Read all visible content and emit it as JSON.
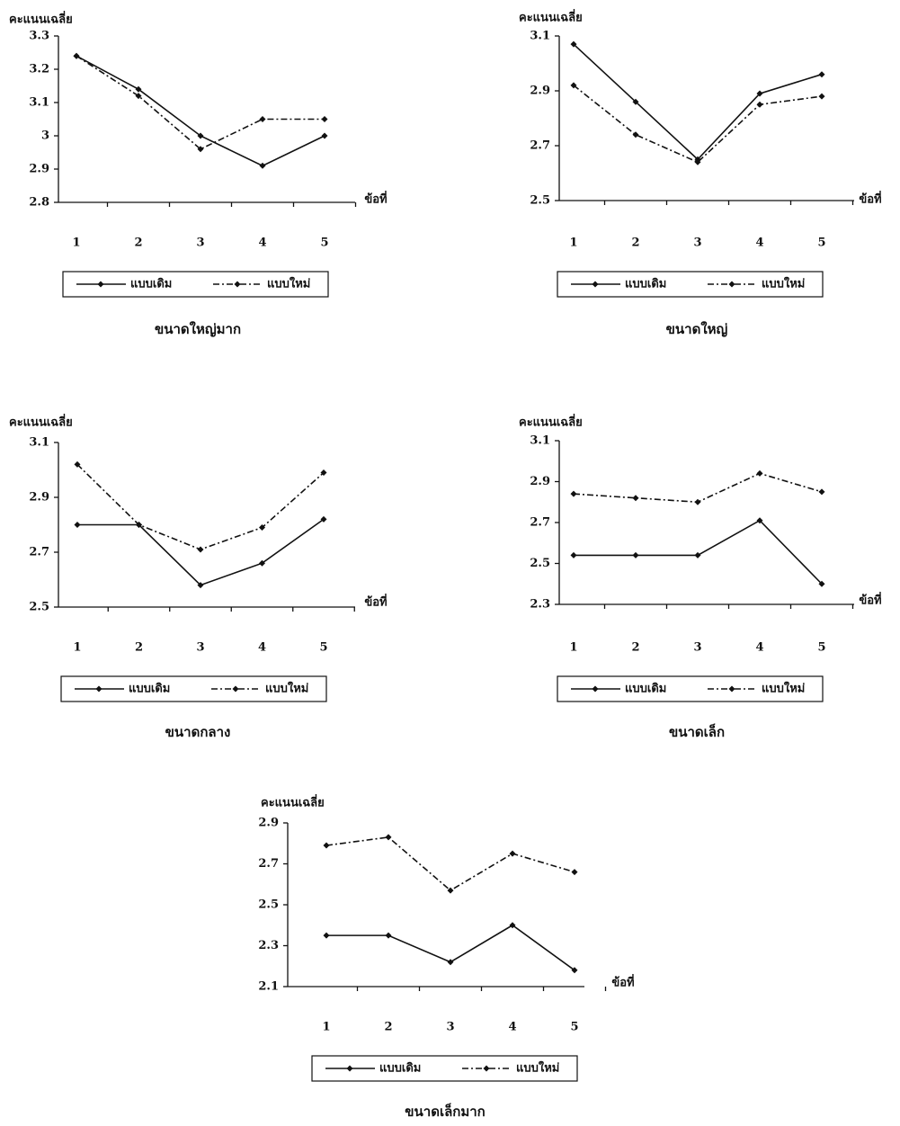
{
  "chart_data": [
    {
      "type": "line",
      "title": "ขนาดใหญ่มาก",
      "y_label": "คะแนนเฉลี่ย",
      "x_label": "ข้อที่",
      "categories": [
        "1",
        "2",
        "3",
        "4",
        "5"
      ],
      "ylim": [
        2.8,
        3.3
      ],
      "yticks": [
        2.8,
        2.9,
        3,
        3.1,
        3.2,
        3.3
      ],
      "series": [
        {
          "name": "แบบเดิม",
          "color": "#111111",
          "line_style": "solid",
          "values": [
            3.24,
            3.14,
            3.0,
            2.91,
            3.0
          ]
        },
        {
          "name": "แบบใหม่",
          "color": "#111111",
          "line_style": "dashdot",
          "values": [
            3.24,
            3.12,
            2.96,
            3.05,
            3.05
          ]
        }
      ]
    },
    {
      "type": "line",
      "title": "ขนาดใหญ่",
      "y_label": "คะแนนเฉลี่ย",
      "x_label": "ข้อที่",
      "categories": [
        "1",
        "2",
        "3",
        "4",
        "5"
      ],
      "ylim": [
        2.5,
        3.1
      ],
      "yticks": [
        2.5,
        2.7,
        2.9,
        3.1
      ],
      "series": [
        {
          "name": "แบบเดิม",
          "color": "#111111",
          "line_style": "solid",
          "values": [
            3.07,
            2.86,
            2.65,
            2.89,
            2.96
          ]
        },
        {
          "name": "แบบใหม่",
          "color": "#111111",
          "line_style": "dashdot",
          "values": [
            2.92,
            2.74,
            2.64,
            2.85,
            2.88
          ]
        }
      ]
    },
    {
      "type": "line",
      "title": "ขนาดกลาง",
      "y_label": "คะแนนเฉลี่ย",
      "x_label": "ข้อที่",
      "categories": [
        "1",
        "2",
        "3",
        "4",
        "5"
      ],
      "ylim": [
        2.5,
        3.1
      ],
      "yticks": [
        2.5,
        2.7,
        2.9,
        3.1
      ],
      "series": [
        {
          "name": "แบบเดิม",
          "color": "#111111",
          "line_style": "solid",
          "values": [
            2.8,
            2.8,
            2.58,
            2.66,
            2.82
          ]
        },
        {
          "name": "แบบใหม่",
          "color": "#111111",
          "line_style": "dashdot",
          "values": [
            3.02,
            2.8,
            2.71,
            2.79,
            2.99
          ]
        }
      ]
    },
    {
      "type": "line",
      "title": "ขนาดเล็ก",
      "y_label": "คะแนนเฉลี่ย",
      "x_label": "ข้อที่",
      "categories": [
        "1",
        "2",
        "3",
        "4",
        "5"
      ],
      "ylim": [
        2.3,
        3.1
      ],
      "yticks": [
        2.3,
        2.5,
        2.7,
        2.9,
        3.1
      ],
      "series": [
        {
          "name": "แบบเดิม",
          "color": "#111111",
          "line_style": "solid",
          "values": [
            2.54,
            2.54,
            2.54,
            2.71,
            2.4
          ]
        },
        {
          "name": "แบบใหม่",
          "color": "#111111",
          "line_style": "dashdot",
          "values": [
            2.84,
            2.82,
            2.8,
            2.94,
            2.85
          ]
        }
      ]
    },
    {
      "type": "line",
      "title": "ขนาดเล็กมาก",
      "y_label": "คะแนนเฉลี่ย",
      "x_label": "ข้อที่",
      "categories": [
        "1",
        "2",
        "3",
        "4",
        "5"
      ],
      "ylim": [
        2.1,
        2.9
      ],
      "yticks": [
        2.1,
        2.3,
        2.5,
        2.7,
        2.9
      ],
      "series": [
        {
          "name": "แบบเดิม",
          "color": "#111111",
          "line_style": "solid",
          "values": [
            2.35,
            2.35,
            2.22,
            2.4,
            2.18
          ]
        },
        {
          "name": "แบบใหม่",
          "color": "#111111",
          "line_style": "dashdot",
          "values": [
            2.79,
            2.83,
            2.57,
            2.75,
            2.66
          ]
        }
      ]
    }
  ]
}
